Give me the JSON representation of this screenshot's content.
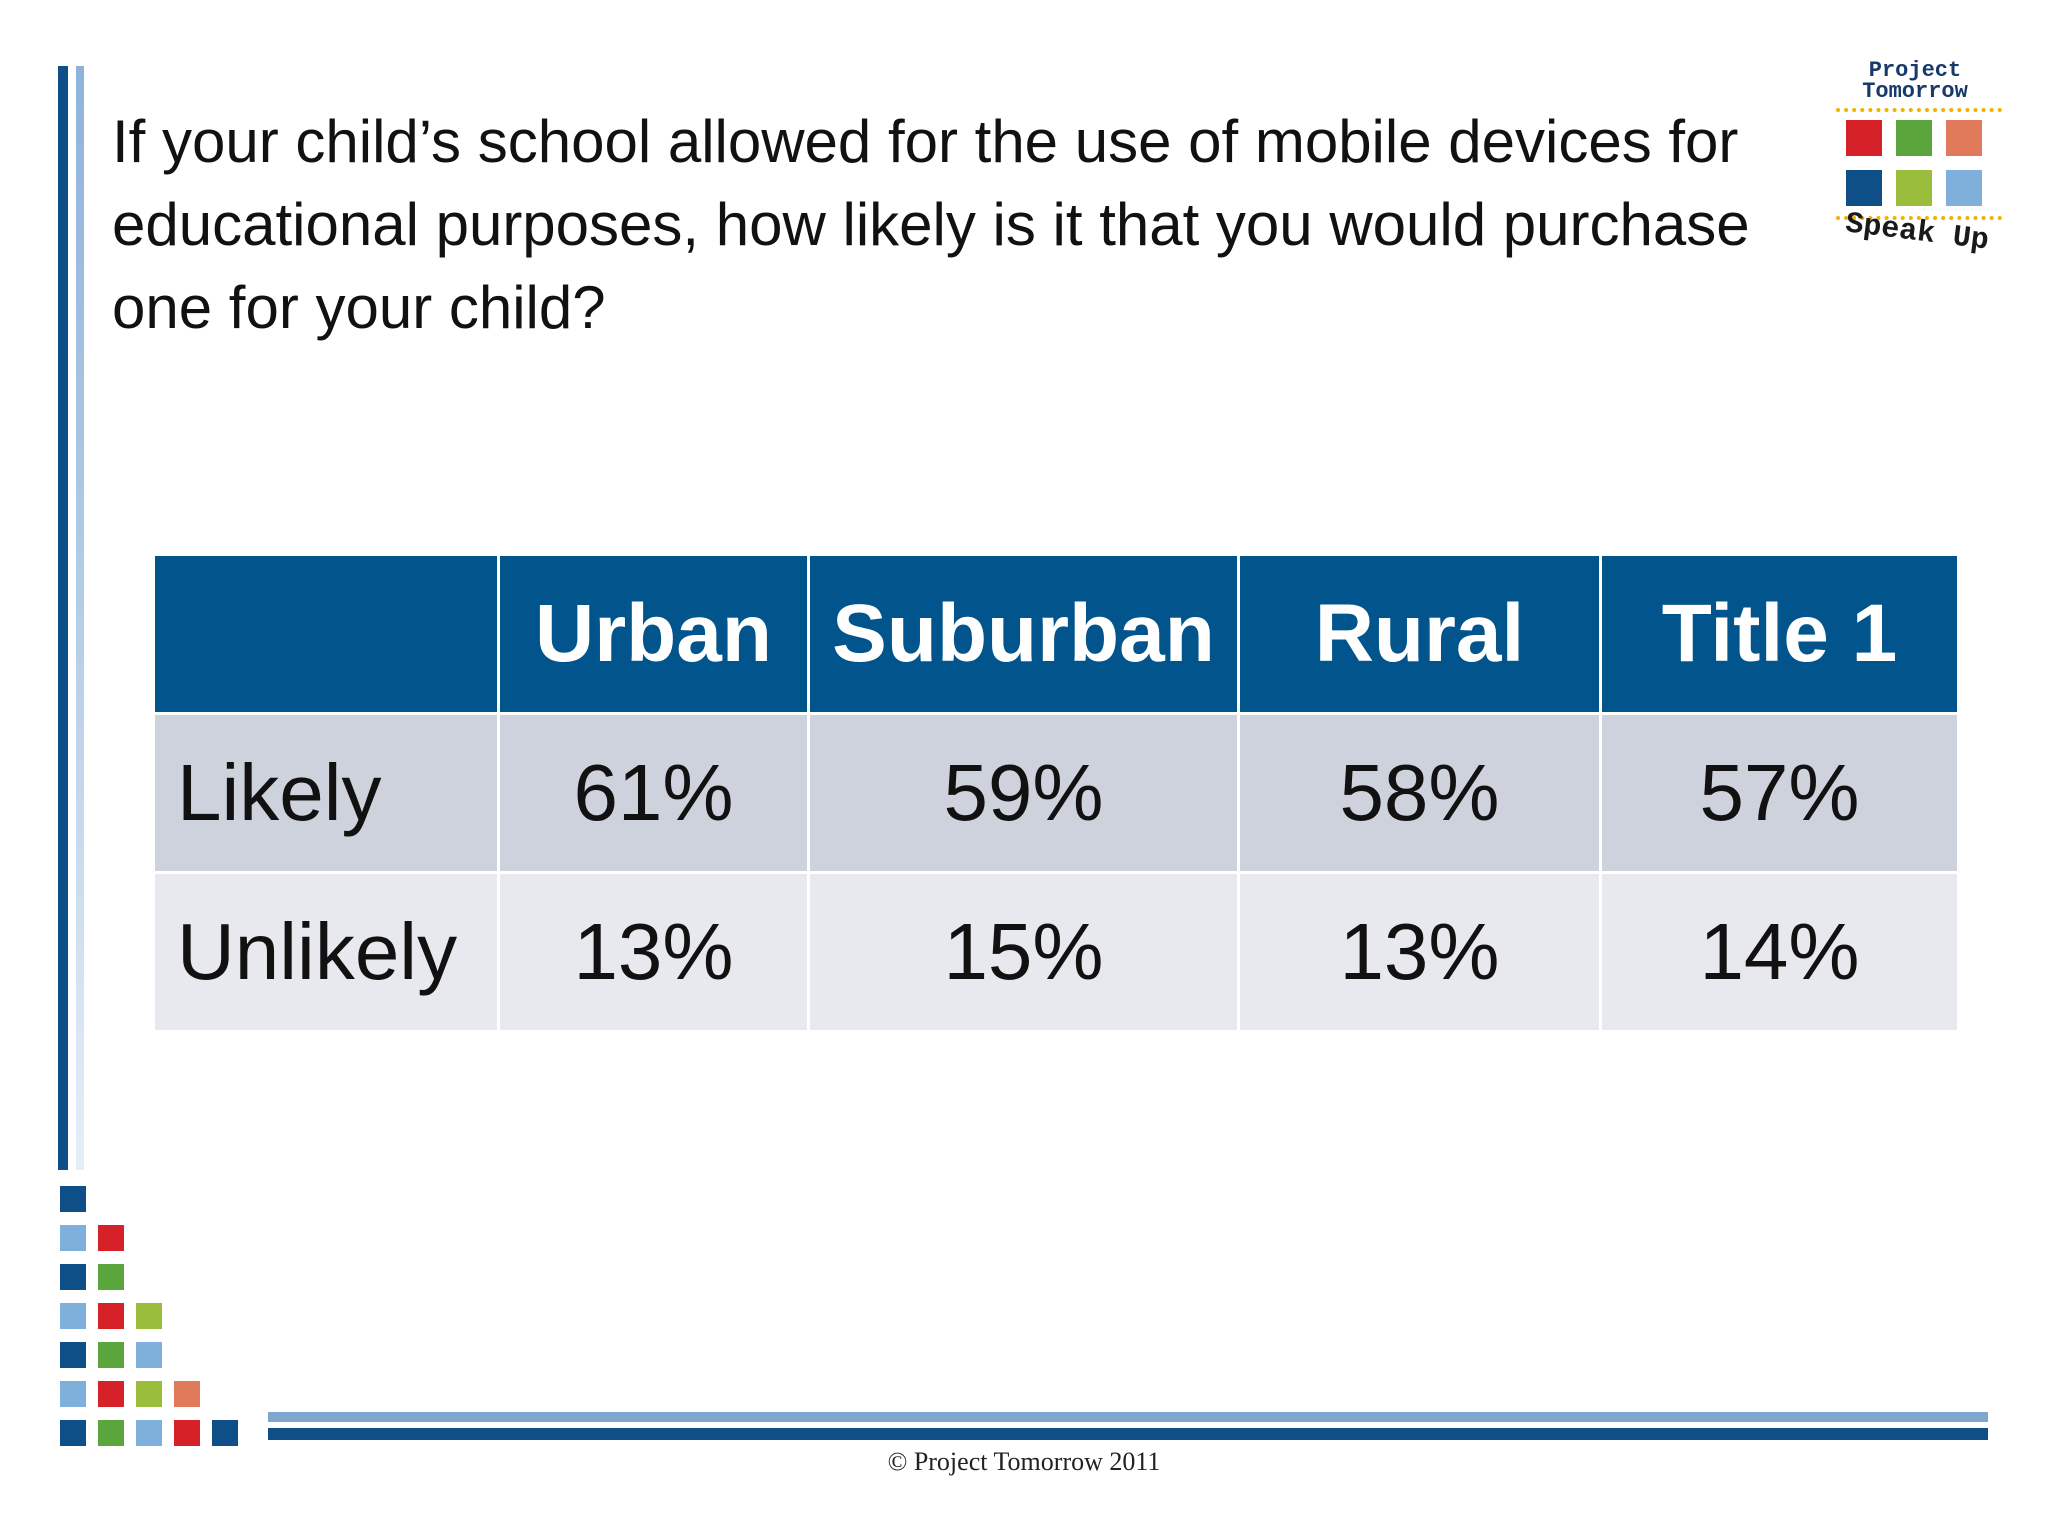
{
  "slide": {
    "title": "If your child’s school allowed for the use of mobile devices for educational purposes, how likely is it that you would purchase one for your child?",
    "footer": "© Project Tomorrow 2011"
  },
  "logo": {
    "top_text_line1": "Project",
    "top_text_line2": "Tomorrow",
    "bottom_text": "Speak Up",
    "square_colors": [
      "#d62128",
      "#5aa63c",
      "#e07a5a",
      "#0d4f86",
      "#9bbd3c",
      "#7fb0dc"
    ]
  },
  "table": {
    "headers": [
      "",
      "Urban",
      "Suburban",
      "Rural",
      "Title 1"
    ],
    "rows": [
      {
        "label": "Likely",
        "values": [
          "61%",
          "59%",
          "58%",
          "57%"
        ]
      },
      {
        "label": "Unlikely",
        "values": [
          "13%",
          "15%",
          "13%",
          "14%"
        ]
      }
    ]
  },
  "colors": {
    "header_blue": "#02548c",
    "row_dark": "#cdd2dd",
    "row_light": "#e7e9ee",
    "brand_blue": "#0d4f86"
  }
}
